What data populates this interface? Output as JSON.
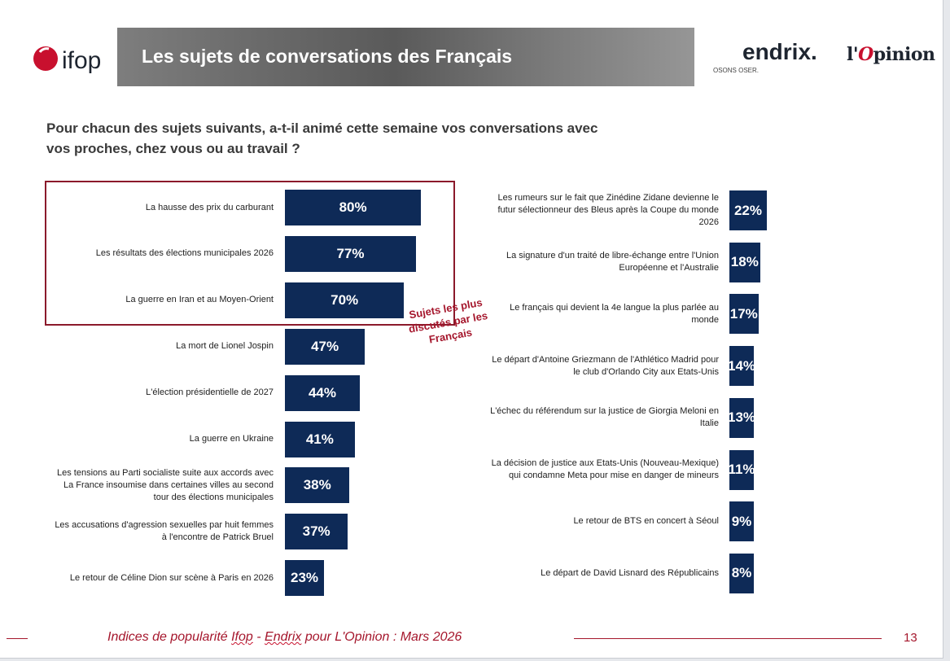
{
  "header": {
    "title": "Les sujets de conversations des Français",
    "ifop_logo_text": "ifop",
    "endrix_logo": "endrix.",
    "endrix_tagline": "OSONS OSER.",
    "opinion_logo_prefix": "l'",
    "opinion_logo_accent": "O",
    "opinion_logo_rest": "pinion"
  },
  "chart_data": {
    "type": "bar",
    "title": "Pour chacun des sujets suivants, a-t-il animé cette semaine vos conversations avec vos proches, chez vous ou au travail ?",
    "highlight_note": "Sujets les plus discutés par les Français",
    "value_unit": "%",
    "xlim": [
      0,
      100
    ],
    "left_column": [
      {
        "label": "La hausse des prix du carburant",
        "value": 80,
        "display": "80%"
      },
      {
        "label": "Les résultats des élections municipales 2026",
        "value": 77,
        "display": "77%"
      },
      {
        "label": "La guerre en Iran et au Moyen-Orient",
        "value": 70,
        "display": "70%"
      },
      {
        "label": "La mort de Lionel Jospin",
        "value": 47,
        "display": "47%"
      },
      {
        "label": "L'élection présidentielle de 2027",
        "value": 44,
        "display": "44%"
      },
      {
        "label": "La guerre en Ukraine",
        "value": 41,
        "display": "41%"
      },
      {
        "label": "Les tensions au Parti socialiste suite aux accords avec La France insoumise dans certaines villes au second tour des élections municipales",
        "value": 38,
        "display": "38%"
      },
      {
        "label": "Les accusations d'agression sexuelles par huit femmes à l'encontre de Patrick Bruel",
        "value": 37,
        "display": "37%"
      },
      {
        "label": "Le retour de Céline Dion sur scène à Paris en 2026",
        "value": 23,
        "display": "23%"
      }
    ],
    "right_column": [
      {
        "label": "Les rumeurs sur le fait que Zinédine Zidane devienne le futur sélectionneur des Bleus après la Coupe du monde 2026",
        "value": 22,
        "display": "22%"
      },
      {
        "label": "La signature d'un traité de libre-échange entre l'Union Européenne et l'Australie",
        "value": 18,
        "display": "18%"
      },
      {
        "label": "Le français qui devient la 4e langue la plus parlée au monde",
        "value": 17,
        "display": "17%"
      },
      {
        "label": "Le départ d'Antoine Griezmann de l'Athlético Madrid pour le club d'Orlando City aux Etats-Unis",
        "value": 14,
        "display": "14%"
      },
      {
        "label": "L'échec du référendum sur la justice de Giorgia Meloni en Italie",
        "value": 13,
        "display": "13%"
      },
      {
        "label": "La décision de justice aux Etats-Unis (Nouveau-Mexique) qui condamne Meta pour mise en danger de mineurs",
        "value": 11,
        "display": "11%"
      },
      {
        "label": "Le retour de BTS en concert à Séoul",
        "value": 9,
        "display": "9%"
      },
      {
        "label": "Le départ de David Lisnard des Républicains",
        "value": 8,
        "display": "8%"
      }
    ],
    "highlighted_count": 3
  },
  "footer": {
    "text_prefix": "Indices de popularité ",
    "text_ifop": "Ifop",
    "text_dash": " - ",
    "text_endrix": "Endrix",
    "text_suffix": " pour L'Opinion : Mars 2026",
    "page_number": "13"
  },
  "colors": {
    "bar": "#0e2a57",
    "accent": "#a5162c",
    "ifop_red": "#c8102e"
  }
}
